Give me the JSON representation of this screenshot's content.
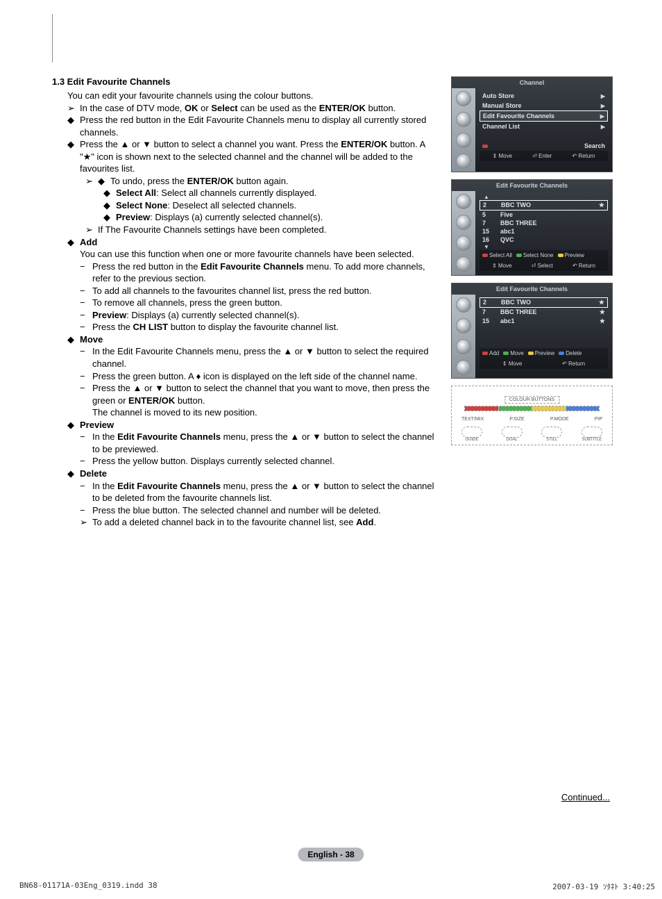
{
  "heading": "1.3  Edit Favourite Channels",
  "intro": "You can edit your favourite channels using the colour buttons.",
  "b1": "In the case of DTV mode, ",
  "b1_bold": "OK",
  "b1_mid": " or ",
  "b1_bold2": "Select",
  "b1_end": " can be used as the ",
  "b1_bold3": "ENTER/OK",
  "b1_tail": " button.",
  "b2": "Press the red button in the Edit Favourite Channels menu to display all currently stored channels.",
  "b3_a": "Press the ▲ or ▼ button to select a channel you want. Press the ",
  "b3_b": "ENTER/OK",
  "b3_c": " button. A \"★\" icon is shown next to the selected channel and the channel will be added to the favourites list.",
  "b4_a": "To undo, press the ",
  "b4_b": "ENTER/OK",
  "b4_c": " button again.",
  "b5_a": "Select All",
  "b5_b": ": Select all channels currently displayed.",
  "b6_a": "Select None",
  "b6_b": ": Deselect all selected channels.",
  "b7_a": "Preview",
  "b7_b": ": Displays (a) currently selected channel(s).",
  "b8": "If The Favourite Channels settings have been completed.",
  "add_head": "Add",
  "add_intro": "You can use this function when one or more favourite channels have been selected.",
  "add1_a": "Press the red button in the ",
  "add1_b": "Edit Favourite Channels",
  "add1_c": " menu. To add more channels, refer to the previous section.",
  "add2": "To add all channels to the favourites channel list, press the red button.",
  "add3": "To remove all channels, press the green button.",
  "add4_a": "Preview",
  "add4_b": ": Displays (a) currently selected channel(s).",
  "add5_a": "Press the ",
  "add5_b": "CH LIST",
  "add5_c": " button to display the favourite channel list.",
  "move_head": "Move",
  "move1": "In the Edit Favourite Channels menu, press the ▲ or ▼ button to select the required channel.",
  "move2_a": "Press the green button. A ",
  "move2_b": " icon is displayed on the left side of the channel name.",
  "move3_a": "Press the ▲ or ▼ button to select the channel that you want to move, then press the green or ",
  "move3_b": "ENTER/OK",
  "move3_c": " button.",
  "move3_d": "The channel is moved to its new position.",
  "preview_head": "Preview",
  "pv1_a": "In the ",
  "pv1_b": "Edit Favourite Channels",
  "pv1_c": " menu, press the ▲ or ▼ button to select the channel to be previewed.",
  "pv2": "Press the yellow button. Displays currently selected channel.",
  "delete_head": "Delete",
  "del1_a": "In the ",
  "del1_b": "Edit Favourite Channels",
  "del1_c": " menu, press the ▲ or ▼ button to select the channel to be deleted from the favourite channels list.",
  "del2": "Press the blue button. The selected channel and number will be deleted.",
  "del3_a": "To add a deleted channel back in to the favourite channel list, see ",
  "del3_b": "Add",
  "del3_c": ".",
  "osd1": {
    "title": "Channel",
    "items": [
      {
        "label": "Auto Store",
        "arrow": true
      },
      {
        "label": "Manual Store",
        "arrow": true
      },
      {
        "label": "Edit Favourite Channels",
        "arrow": true,
        "selected": true
      },
      {
        "label": "Channel List",
        "arrow": true
      }
    ],
    "search": "Search",
    "footer": [
      "Move",
      "Enter",
      "Return"
    ]
  },
  "osd2": {
    "title": "Edit Favourite Channels",
    "rows": [
      {
        "num": "2",
        "name": "BBC TWO",
        "star": "★",
        "selected": true
      },
      {
        "num": "5",
        "name": "Five"
      },
      {
        "num": "7",
        "name": "BBC THREE"
      },
      {
        "num": "15",
        "name": "abc1"
      },
      {
        "num": "16",
        "name": "QVC"
      }
    ],
    "footer2": [
      {
        "color": "red",
        "label": "Select All"
      },
      {
        "color": "green",
        "label": "Select None"
      },
      {
        "color": "yellow",
        "label": "Preview"
      }
    ],
    "footer": [
      "Move",
      "Select",
      "Return"
    ]
  },
  "osd3": {
    "title": "Edit Favourite Channels",
    "rows": [
      {
        "num": "2",
        "name": "BBC TWO",
        "star": "★",
        "selected": true
      },
      {
        "num": "7",
        "name": "BBC THREE",
        "star": "★"
      },
      {
        "num": "15",
        "name": "abc1",
        "star": "★"
      }
    ],
    "footer2": [
      {
        "color": "red",
        "label": "Add"
      },
      {
        "color": "green",
        "label": "Move"
      },
      {
        "color": "yellow",
        "label": "Preview"
      },
      {
        "color": "blue",
        "label": "Delete"
      }
    ],
    "footer": [
      "Move",
      "Return"
    ]
  },
  "remote": {
    "colour_label": "COLOUR BUTTONS",
    "row2": [
      "TEXT/MIX",
      "P.SIZE",
      "P.MODE",
      "PIP"
    ],
    "row3": [
      "GUIDE",
      "DUAL",
      "STILL",
      "SUBTITLE"
    ]
  },
  "continued": "Continued...",
  "page_num": "English - 38",
  "footer_file": "BN68-01171A-03Eng_0319.indd   38",
  "footer_time": "2007-03-19   ｿﾀﾈﾄ 3:40:25"
}
